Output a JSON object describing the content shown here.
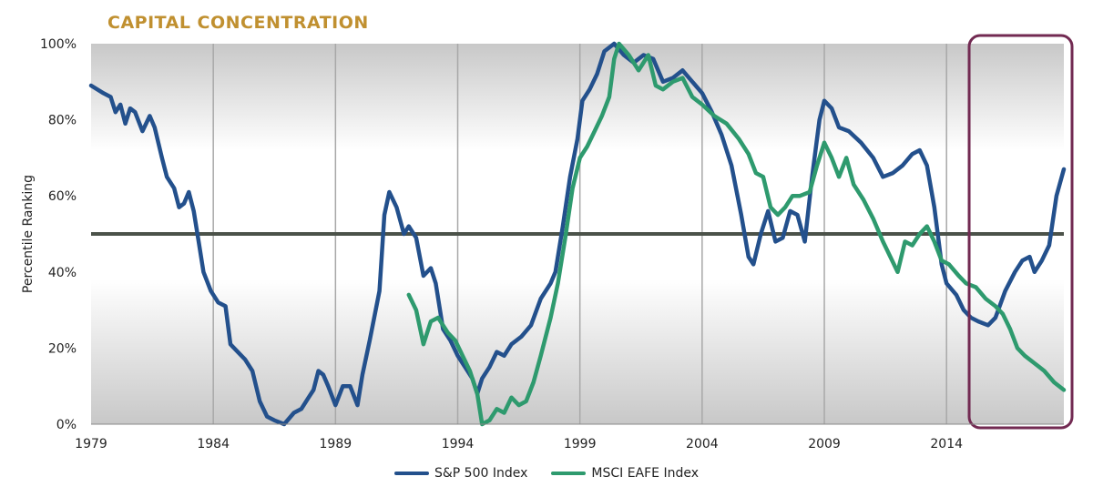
{
  "chart_data": {
    "type": "line",
    "title": "CAPITAL CONCENTRATION",
    "ylabel": "Percentile Ranking",
    "xlabel": "",
    "xlim": [
      1979,
      2018.8
    ],
    "ylim": [
      0,
      100
    ],
    "y_ticks": [
      0,
      20,
      40,
      60,
      80,
      100
    ],
    "y_tick_labels": [
      "0%",
      "20%",
      "40%",
      "60%",
      "80%",
      "100%"
    ],
    "x_ticks": [
      1979,
      1984,
      1989,
      1994,
      1999,
      2004,
      2009,
      2014
    ],
    "reference_line": 50,
    "highlight_range": [
      2015,
      2018.8
    ],
    "series": [
      {
        "name": "S&P 500 Index",
        "color": "#23508c",
        "points": [
          [
            1979.0,
            89
          ],
          [
            1979.5,
            87
          ],
          [
            1979.8,
            86
          ],
          [
            1980.0,
            82
          ],
          [
            1980.2,
            84
          ],
          [
            1980.4,
            79
          ],
          [
            1980.6,
            83
          ],
          [
            1980.8,
            82
          ],
          [
            1981.1,
            77
          ],
          [
            1981.4,
            81
          ],
          [
            1981.6,
            78
          ],
          [
            1981.9,
            70
          ],
          [
            1982.1,
            65
          ],
          [
            1982.4,
            62
          ],
          [
            1982.6,
            57
          ],
          [
            1982.8,
            58
          ],
          [
            1983.0,
            61
          ],
          [
            1983.2,
            56
          ],
          [
            1983.4,
            48
          ],
          [
            1983.6,
            40
          ],
          [
            1983.9,
            35
          ],
          [
            1984.2,
            32
          ],
          [
            1984.5,
            31
          ],
          [
            1984.7,
            21
          ],
          [
            1985.0,
            19
          ],
          [
            1985.3,
            17
          ],
          [
            1985.6,
            14
          ],
          [
            1985.9,
            6
          ],
          [
            1986.2,
            2
          ],
          [
            1986.5,
            1
          ],
          [
            1986.9,
            0
          ],
          [
            1987.3,
            3
          ],
          [
            1987.6,
            4
          ],
          [
            1987.9,
            7
          ],
          [
            1988.1,
            9
          ],
          [
            1988.3,
            14
          ],
          [
            1988.5,
            13
          ],
          [
            1988.7,
            10
          ],
          [
            1989.0,
            5
          ],
          [
            1989.3,
            10
          ],
          [
            1989.6,
            10
          ],
          [
            1989.9,
            5
          ],
          [
            1990.1,
            13
          ],
          [
            1990.4,
            22
          ],
          [
            1990.8,
            35
          ],
          [
            1991.0,
            55
          ],
          [
            1991.2,
            61
          ],
          [
            1991.5,
            57
          ],
          [
            1991.8,
            50
          ],
          [
            1992.0,
            52
          ],
          [
            1992.3,
            49
          ],
          [
            1992.6,
            39
          ],
          [
            1992.9,
            41
          ],
          [
            1993.1,
            37
          ],
          [
            1993.4,
            25
          ],
          [
            1993.7,
            22
          ],
          [
            1994.0,
            18
          ],
          [
            1994.3,
            15
          ],
          [
            1994.6,
            12
          ],
          [
            1994.8,
            8
          ],
          [
            1995.0,
            12
          ],
          [
            1995.3,
            15
          ],
          [
            1995.6,
            19
          ],
          [
            1995.9,
            18
          ],
          [
            1996.2,
            21
          ],
          [
            1996.6,
            23
          ],
          [
            1997.0,
            26
          ],
          [
            1997.4,
            33
          ],
          [
            1997.8,
            37
          ],
          [
            1998.0,
            40
          ],
          [
            1998.3,
            52
          ],
          [
            1998.6,
            65
          ],
          [
            1998.9,
            75
          ],
          [
            1999.1,
            85
          ],
          [
            1999.4,
            88
          ],
          [
            1999.7,
            92
          ],
          [
            2000.0,
            98
          ],
          [
            2000.4,
            100
          ],
          [
            2000.8,
            97
          ],
          [
            2001.2,
            95
          ],
          [
            2001.6,
            97
          ],
          [
            2002.0,
            96
          ],
          [
            2002.4,
            90
          ],
          [
            2002.8,
            91
          ],
          [
            2003.2,
            93
          ],
          [
            2003.6,
            90
          ],
          [
            2004.0,
            87
          ],
          [
            2004.4,
            82
          ],
          [
            2004.8,
            76
          ],
          [
            2005.2,
            68
          ],
          [
            2005.6,
            55
          ],
          [
            2005.9,
            44
          ],
          [
            2006.1,
            42
          ],
          [
            2006.4,
            50
          ],
          [
            2006.7,
            56
          ],
          [
            2007.0,
            48
          ],
          [
            2007.3,
            49
          ],
          [
            2007.6,
            56
          ],
          [
            2007.9,
            55
          ],
          [
            2008.2,
            48
          ],
          [
            2008.5,
            65
          ],
          [
            2008.8,
            80
          ],
          [
            2009.0,
            85
          ],
          [
            2009.3,
            83
          ],
          [
            2009.6,
            78
          ],
          [
            2010.0,
            77
          ],
          [
            2010.5,
            74
          ],
          [
            2011.0,
            70
          ],
          [
            2011.4,
            65
          ],
          [
            2011.8,
            66
          ],
          [
            2012.2,
            68
          ],
          [
            2012.6,
            71
          ],
          [
            2012.9,
            72
          ],
          [
            2013.2,
            68
          ],
          [
            2013.5,
            57
          ],
          [
            2013.8,
            42
          ],
          [
            2014.0,
            37
          ],
          [
            2014.4,
            34
          ],
          [
            2014.7,
            30
          ],
          [
            2015.0,
            28
          ],
          [
            2015.3,
            27
          ],
          [
            2015.7,
            26
          ],
          [
            2016.0,
            28
          ],
          [
            2016.4,
            35
          ],
          [
            2016.8,
            40
          ],
          [
            2017.1,
            43
          ],
          [
            2017.4,
            44
          ],
          [
            2017.6,
            40
          ],
          [
            2017.9,
            43
          ],
          [
            2018.2,
            47
          ],
          [
            2018.5,
            60
          ],
          [
            2018.8,
            67
          ]
        ]
      },
      {
        "name": "MSCI EAFE Index",
        "color": "#2e9a6e",
        "points": [
          [
            1992.0,
            34
          ],
          [
            1992.3,
            30
          ],
          [
            1992.6,
            21
          ],
          [
            1992.9,
            27
          ],
          [
            1993.2,
            28
          ],
          [
            1993.6,
            24
          ],
          [
            1993.9,
            22
          ],
          [
            1994.2,
            18
          ],
          [
            1994.5,
            14
          ],
          [
            1994.8,
            8
          ],
          [
            1995.0,
            0
          ],
          [
            1995.3,
            1
          ],
          [
            1995.6,
            4
          ],
          [
            1995.9,
            3
          ],
          [
            1996.2,
            7
          ],
          [
            1996.5,
            5
          ],
          [
            1996.8,
            6
          ],
          [
            1997.1,
            11
          ],
          [
            1997.4,
            18
          ],
          [
            1997.8,
            28
          ],
          [
            1998.1,
            37
          ],
          [
            1998.4,
            49
          ],
          [
            1998.7,
            62
          ],
          [
            1999.0,
            70
          ],
          [
            1999.3,
            73
          ],
          [
            1999.6,
            77
          ],
          [
            1999.9,
            81
          ],
          [
            2000.2,
            86
          ],
          [
            2000.4,
            96
          ],
          [
            2000.6,
            100
          ],
          [
            2001.0,
            97
          ],
          [
            2001.4,
            93
          ],
          [
            2001.8,
            97
          ],
          [
            2002.1,
            89
          ],
          [
            2002.4,
            88
          ],
          [
            2002.8,
            90
          ],
          [
            2003.2,
            91
          ],
          [
            2003.6,
            86
          ],
          [
            2004.0,
            84
          ],
          [
            2004.5,
            81
          ],
          [
            2005.0,
            79
          ],
          [
            2005.5,
            75
          ],
          [
            2005.9,
            71
          ],
          [
            2006.2,
            66
          ],
          [
            2006.5,
            65
          ],
          [
            2006.8,
            57
          ],
          [
            2007.1,
            55
          ],
          [
            2007.4,
            57
          ],
          [
            2007.7,
            60
          ],
          [
            2008.0,
            60
          ],
          [
            2008.4,
            61
          ],
          [
            2008.7,
            68
          ],
          [
            2009.0,
            74
          ],
          [
            2009.3,
            70
          ],
          [
            2009.6,
            65
          ],
          [
            2009.9,
            70
          ],
          [
            2010.2,
            63
          ],
          [
            2010.6,
            59
          ],
          [
            2011.0,
            54
          ],
          [
            2011.4,
            48
          ],
          [
            2011.7,
            44
          ],
          [
            2012.0,
            40
          ],
          [
            2012.3,
            48
          ],
          [
            2012.6,
            47
          ],
          [
            2012.9,
            50
          ],
          [
            2013.2,
            52
          ],
          [
            2013.5,
            48
          ],
          [
            2013.8,
            43
          ],
          [
            2014.1,
            42
          ],
          [
            2014.5,
            39
          ],
          [
            2014.8,
            37
          ],
          [
            2015.2,
            36
          ],
          [
            2015.6,
            33
          ],
          [
            2016.0,
            31
          ],
          [
            2016.3,
            29
          ],
          [
            2016.6,
            25
          ],
          [
            2016.9,
            20
          ],
          [
            2017.2,
            18
          ],
          [
            2017.6,
            16
          ],
          [
            2018.0,
            14
          ],
          [
            2018.4,
            11
          ],
          [
            2018.8,
            9
          ]
        ]
      }
    ]
  },
  "legend": {
    "items": [
      {
        "label": "S&P 500 Index",
        "color": "#23508c"
      },
      {
        "label": "MSCI EAFE Index",
        "color": "#2e9a6e"
      }
    ]
  }
}
